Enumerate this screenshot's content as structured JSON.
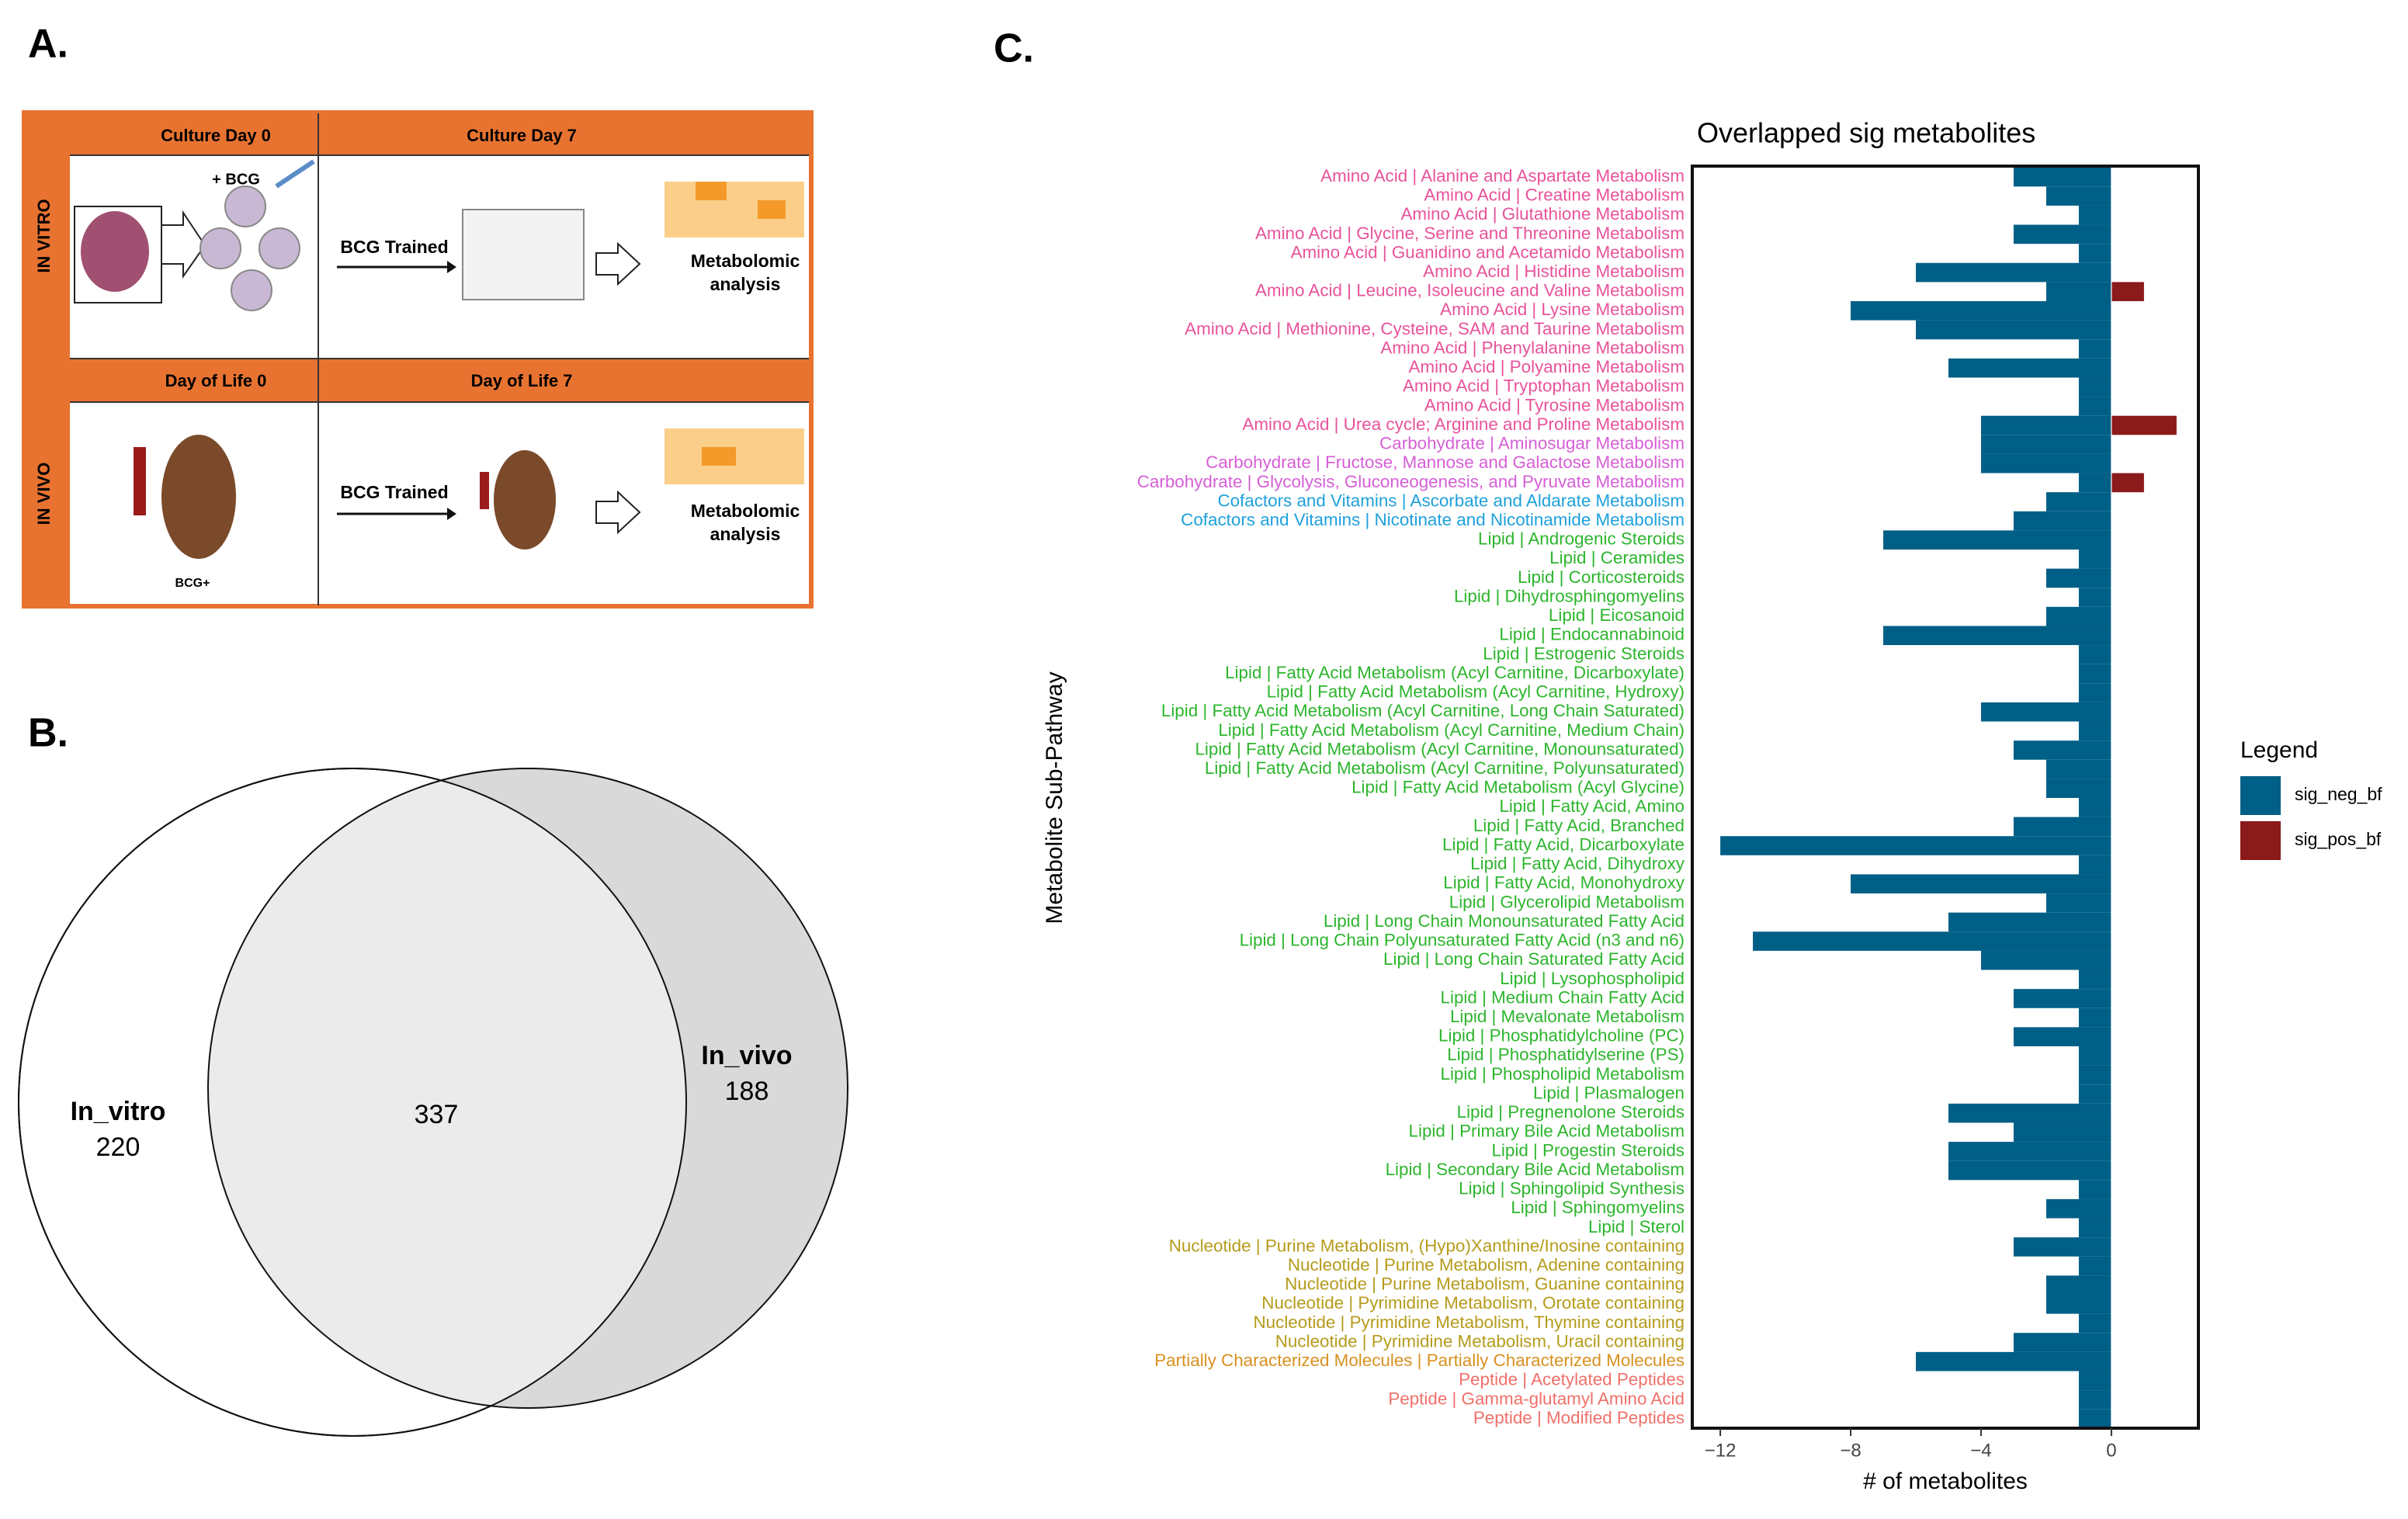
{
  "panel_labels": [
    "A.",
    "B.",
    "C."
  ],
  "diagram": {
    "rows": [
      {
        "label": "IN VITRO",
        "col_headers": [
          "Culture Day 0",
          "Culture Day 7"
        ],
        "stimulus": "+ BCG",
        "arrow_label": "BCG Trained",
        "output": [
          "Metabolomic",
          "analysis"
        ]
      },
      {
        "label": "IN VIVO",
        "col_headers": [
          "Day of Life 0",
          "Day of Life 7"
        ],
        "subject_label": "BCG+",
        "arrow_label": "BCG Trained",
        "output": [
          "Metabolomic",
          "analysis"
        ]
      }
    ]
  },
  "chart_data": [
    {
      "type": "venn",
      "sets": [
        {
          "name": "In_vitro",
          "value": 220,
          "color": "#ffffff"
        },
        {
          "name": "In_vivo",
          "value": 188,
          "color": "#d9d9d9"
        }
      ],
      "overlap": {
        "value": 337,
        "color": "#ebebeb"
      }
    },
    {
      "type": "barh",
      "title": "Overlapped sig metabolites",
      "xlabel": "# of metabolites",
      "ylabel": "Metabolite Sub-Pathway",
      "legend_title": "Legend",
      "legend": "right",
      "xlim": [
        -12.86,
        2.67
      ],
      "xticks": [
        {
          "value": -12,
          "label": "−12"
        },
        {
          "value": -8,
          "label": "−8"
        },
        {
          "value": -4,
          "label": "−4"
        },
        0
      ],
      "categories": [
        "Amino Acid | Alanine and Aspartate Metabolism",
        "Amino Acid | Creatine Metabolism",
        "Amino Acid | Glutathione Metabolism",
        "Amino Acid | Glycine, Serine and Threonine Metabolism",
        "Amino Acid | Guanidino and Acetamido Metabolism",
        "Amino Acid | Histidine Metabolism",
        "Amino Acid | Leucine, Isoleucine and Valine Metabolism",
        "Amino Acid | Lysine Metabolism",
        "Amino Acid | Methionine, Cysteine, SAM and Taurine Metabolism",
        "Amino Acid | Phenylalanine Metabolism",
        "Amino Acid | Polyamine Metabolism",
        "Amino Acid | Tryptophan Metabolism",
        "Amino Acid | Tyrosine Metabolism",
        "Amino Acid | Urea cycle; Arginine and Proline Metabolism",
        "Carbohydrate | Aminosugar Metabolism",
        "Carbohydrate | Fructose, Mannose and Galactose Metabolism",
        "Carbohydrate | Glycolysis, Gluconeogenesis, and Pyruvate Metabolism",
        "Cofactors and Vitamins | Ascorbate and Aldarate Metabolism",
        "Cofactors and Vitamins | Nicotinate and Nicotinamide Metabolism",
        "Lipid | Androgenic Steroids",
        "Lipid | Ceramides",
        "Lipid | Corticosteroids",
        "Lipid | Dihydrosphingomyelins",
        "Lipid | Eicosanoid",
        "Lipid | Endocannabinoid",
        "Lipid | Estrogenic Steroids",
        "Lipid | Fatty Acid Metabolism (Acyl Carnitine, Dicarboxylate)",
        "Lipid | Fatty Acid Metabolism (Acyl Carnitine, Hydroxy)",
        "Lipid | Fatty Acid Metabolism (Acyl Carnitine, Long Chain Saturated)",
        "Lipid | Fatty Acid Metabolism (Acyl Carnitine, Medium Chain)",
        "Lipid | Fatty Acid Metabolism (Acyl Carnitine, Monounsaturated)",
        "Lipid | Fatty Acid Metabolism (Acyl Carnitine, Polyunsaturated)",
        "Lipid | Fatty Acid Metabolism (Acyl Glycine)",
        "Lipid | Fatty Acid, Amino",
        "Lipid | Fatty Acid, Branched",
        "Lipid | Fatty Acid, Dicarboxylate",
        "Lipid | Fatty Acid, Dihydroxy",
        "Lipid | Fatty Acid, Monohydroxy",
        "Lipid | Glycerolipid Metabolism",
        "Lipid | Long Chain Monounsaturated Fatty Acid",
        "Lipid | Long Chain Polyunsaturated Fatty Acid (n3 and n6)",
        "Lipid | Long Chain Saturated Fatty Acid",
        "Lipid | Lysophospholipid",
        "Lipid | Medium Chain Fatty Acid",
        "Lipid | Mevalonate Metabolism",
        "Lipid | Phosphatidylcholine (PC)",
        "Lipid | Phosphatidylserine (PS)",
        "Lipid | Phospholipid Metabolism",
        "Lipid | Plasmalogen",
        "Lipid | Pregnenolone Steroids",
        "Lipid | Primary Bile Acid Metabolism",
        "Lipid | Progestin Steroids",
        "Lipid | Secondary Bile Acid Metabolism",
        "Lipid | Sphingolipid Synthesis",
        "Lipid | Sphingomyelins",
        "Lipid | Sterol",
        "Nucleotide | Purine Metabolism, (Hypo)Xanthine/Inosine containing",
        "Nucleotide | Purine Metabolism, Adenine containing",
        "Nucleotide | Purine Metabolism, Guanine containing",
        "Nucleotide | Pyrimidine Metabolism, Orotate containing",
        "Nucleotide | Pyrimidine Metabolism, Thymine containing",
        "Nucleotide | Pyrimidine Metabolism, Uracil containing",
        "Partially Characterized Molecules | Partially Characterized Molecules",
        "Peptide | Acetylated Peptides",
        "Peptide | Gamma-glutamyl Amino Acid",
        "Peptide | Modified Peptides"
      ],
      "category_colors": [
        "#e8539b",
        "#e8539b",
        "#e8539b",
        "#e8539b",
        "#e8539b",
        "#e8539b",
        "#e8539b",
        "#e8539b",
        "#e8539b",
        "#e8539b",
        "#e8539b",
        "#e8539b",
        "#e8539b",
        "#e8539b",
        "#d65fd6",
        "#d65fd6",
        "#d65fd6",
        "#1ea1dc",
        "#1ea1dc",
        "#2db52d",
        "#2db52d",
        "#2db52d",
        "#2db52d",
        "#2db52d",
        "#2db52d",
        "#2db52d",
        "#2db52d",
        "#2db52d",
        "#2db52d",
        "#2db52d",
        "#2db52d",
        "#2db52d",
        "#2db52d",
        "#2db52d",
        "#2db52d",
        "#2db52d",
        "#2db52d",
        "#2db52d",
        "#2db52d",
        "#2db52d",
        "#2db52d",
        "#2db52d",
        "#2db52d",
        "#2db52d",
        "#2db52d",
        "#2db52d",
        "#2db52d",
        "#2db52d",
        "#2db52d",
        "#2db52d",
        "#2db52d",
        "#2db52d",
        "#2db52d",
        "#2db52d",
        "#2db52d",
        "#2db52d",
        "#b59b1b",
        "#b59b1b",
        "#b59b1b",
        "#b59b1b",
        "#b59b1b",
        "#b59b1b",
        "#d89120",
        "#f0706a",
        "#f0706a",
        "#f0706a"
      ],
      "series": [
        {
          "name": "sig_neg_bf",
          "color": "#005f86",
          "values": [
            -3,
            -2,
            -1,
            -3,
            -1,
            -6,
            -2,
            -8,
            -6,
            -1,
            -5,
            -1,
            -1,
            -4,
            -4,
            -4,
            -1,
            -2,
            -3,
            -7,
            -1,
            -2,
            -1,
            -2,
            -7,
            -1,
            -1,
            -1,
            -4,
            -1,
            -3,
            -2,
            -2,
            -1,
            -3,
            -12,
            -1,
            -8,
            -2,
            -5,
            -11,
            -4,
            -1,
            -3,
            -1,
            -3,
            -1,
            -1,
            -1,
            -5,
            -3,
            -5,
            -5,
            -1,
            -2,
            -1,
            -3,
            -1,
            -2,
            -2,
            -1,
            -3,
            -6,
            -1,
            -1,
            -1
          ]
        },
        {
          "name": "sig_pos_bf",
          "color": "#8b1a1a",
          "values": [
            null,
            null,
            null,
            null,
            null,
            null,
            1,
            null,
            null,
            null,
            null,
            null,
            null,
            2,
            null,
            null,
            1,
            null,
            null,
            null,
            null,
            null,
            null,
            null,
            null,
            null,
            null,
            null,
            null,
            null,
            null,
            null,
            null,
            null,
            null,
            null,
            null,
            null,
            null,
            null,
            null,
            null,
            null,
            null,
            null,
            null,
            null,
            null,
            null,
            null,
            null,
            null,
            null,
            null,
            null,
            null,
            null,
            null,
            null,
            null,
            null,
            null,
            null,
            null,
            null,
            null
          ]
        }
      ]
    }
  ]
}
